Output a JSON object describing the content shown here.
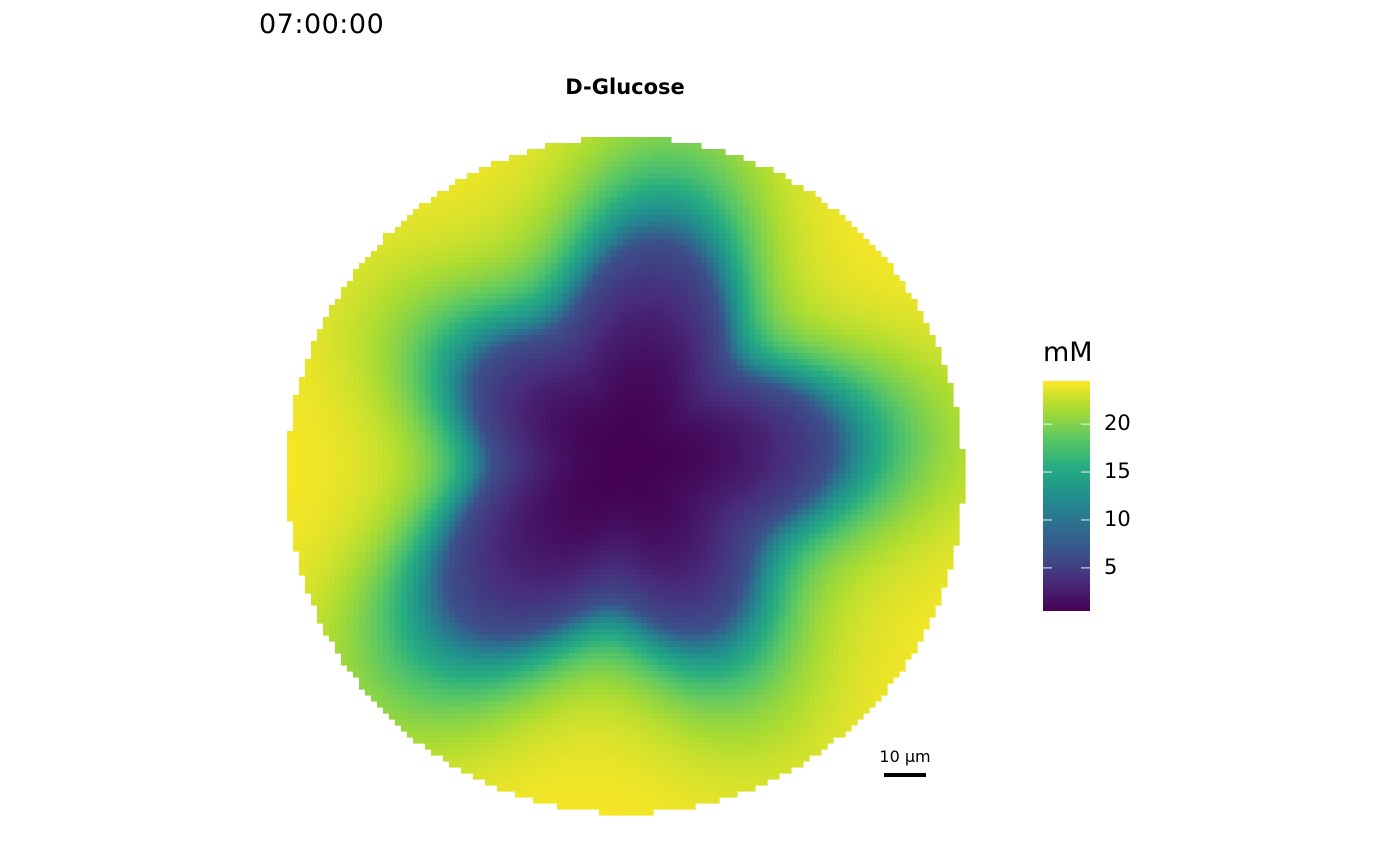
{
  "timestamp": "07:00:00",
  "chart_data": {
    "type": "heatmap",
    "title": "D-Glucose",
    "shape": "circular domain",
    "colormap": "viridis",
    "low_color": "#440154",
    "high_color": "#FDE725",
    "legend": {
      "title": "mM",
      "placement": "right",
      "range": [
        0.5,
        24.5
      ],
      "ticks": [
        5,
        10,
        15,
        20
      ],
      "tick_labels": [
        "5",
        "10",
        "15",
        "20"
      ]
    },
    "field": {
      "max_value": 24.5,
      "min_value": 0.5,
      "center_value": 0.5,
      "depleted_region_label": "low concentration in center, high at periphery"
    },
    "scale_bar": {
      "label": "10 µm",
      "length_um": 10
    }
  }
}
